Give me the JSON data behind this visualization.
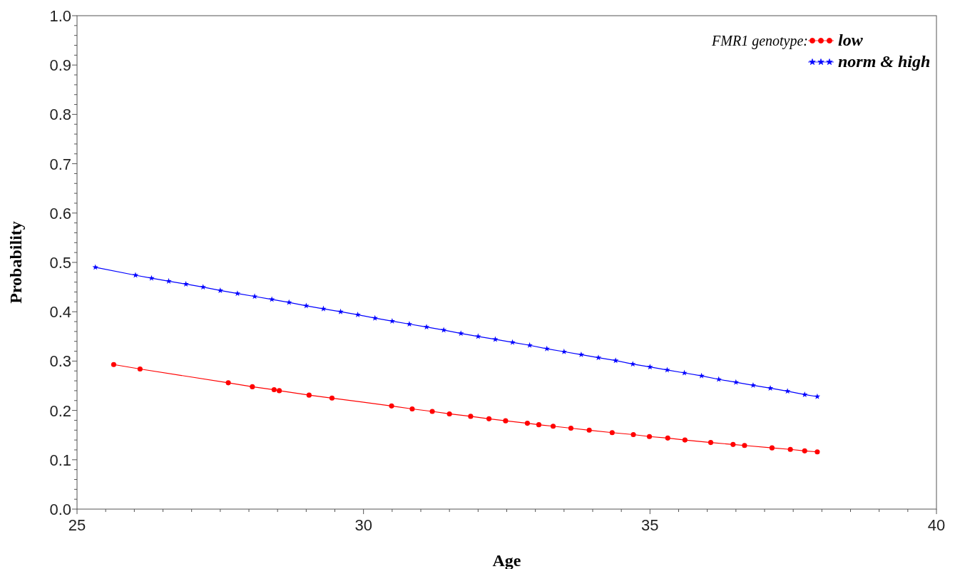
{
  "chart_data": {
    "type": "line",
    "xlabel": "Age",
    "ylabel": "Probability",
    "legend_title": "FMR1 genotype:",
    "legend": "top right",
    "grid": false,
    "xlim": [
      25,
      40
    ],
    "ylim": [
      0,
      1
    ],
    "xticks": [
      25,
      {
        "value": 25.5,
        "label": null
      },
      {
        "value": 26,
        "label": null
      },
      {
        "value": 26.5,
        "label": null
      },
      {
        "value": 27,
        "label": null
      },
      {
        "value": 27.5,
        "label": null
      },
      {
        "value": 28,
        "label": null
      },
      {
        "value": 28.5,
        "label": null
      },
      {
        "value": 29,
        "label": null
      },
      {
        "value": 29.5,
        "label": null
      },
      30,
      {
        "value": 30.5,
        "label": null
      },
      {
        "value": 31,
        "label": null
      },
      {
        "value": 31.5,
        "label": null
      },
      {
        "value": 32,
        "label": null
      },
      {
        "value": 32.5,
        "label": null
      },
      {
        "value": 33,
        "label": null
      },
      {
        "value": 33.5,
        "label": null
      },
      {
        "value": 34,
        "label": null
      },
      {
        "value": 34.5,
        "label": null
      },
      35,
      {
        "value": 35.5,
        "label": null
      },
      {
        "value": 36,
        "label": null
      },
      {
        "value": 36.5,
        "label": null
      },
      {
        "value": 37,
        "label": null
      },
      {
        "value": 37.5,
        "label": null
      },
      {
        "value": 38,
        "label": null
      },
      {
        "value": 38.5,
        "label": null
      },
      {
        "value": 39,
        "label": null
      },
      {
        "value": 39.5,
        "label": null
      },
      40
    ],
    "yticks": [
      {
        "value": 0,
        "label": "0.0"
      },
      {
        "value": 0.02,
        "label": null
      },
      {
        "value": 0.04,
        "label": null
      },
      {
        "value": 0.06,
        "label": null
      },
      {
        "value": 0.08,
        "label": null
      },
      0.1,
      {
        "value": 0.12,
        "label": null
      },
      {
        "value": 0.14,
        "label": null
      },
      {
        "value": 0.16,
        "label": null
      },
      {
        "value": 0.18,
        "label": null
      },
      0.2,
      {
        "value": 0.22,
        "label": null
      },
      {
        "value": 0.24,
        "label": null
      },
      {
        "value": 0.26,
        "label": null
      },
      {
        "value": 0.28,
        "label": null
      },
      0.3,
      {
        "value": 0.32,
        "label": null
      },
      {
        "value": 0.34,
        "label": null
      },
      {
        "value": 0.36,
        "label": null
      },
      {
        "value": 0.38,
        "label": null
      },
      0.4,
      {
        "value": 0.42,
        "label": null
      },
      {
        "value": 0.44,
        "label": null
      },
      {
        "value": 0.46,
        "label": null
      },
      {
        "value": 0.48,
        "label": null
      },
      0.5,
      {
        "value": 0.52,
        "label": null
      },
      {
        "value": 0.54,
        "label": null
      },
      {
        "value": 0.56,
        "label": null
      },
      {
        "value": 0.58,
        "label": null
      },
      0.6,
      {
        "value": 0.62,
        "label": null
      },
      {
        "value": 0.64,
        "label": null
      },
      {
        "value": 0.66,
        "label": null
      },
      {
        "value": 0.68,
        "label": null
      },
      0.7,
      {
        "value": 0.72,
        "label": null
      },
      {
        "value": 0.74,
        "label": null
      },
      {
        "value": 0.76,
        "label": null
      },
      {
        "value": 0.78,
        "label": null
      },
      0.8,
      {
        "value": 0.82,
        "label": null
      },
      {
        "value": 0.84,
        "label": null
      },
      {
        "value": 0.86,
        "label": null
      },
      {
        "value": 0.88,
        "label": null
      },
      0.9,
      {
        "value": 0.92,
        "label": null
      },
      {
        "value": 0.94,
        "label": null
      },
      {
        "value": 0.96,
        "label": null
      },
      {
        "value": 0.98,
        "label": null
      },
      {
        "value": 1,
        "label": "1.0"
      }
    ],
    "series": [
      {
        "name": "low",
        "color": "#ff0000",
        "marker": "circle",
        "x": [
          25.64,
          26.1,
          27.64,
          28.06,
          28.44,
          28.53,
          29.05,
          29.45,
          30.49,
          30.85,
          31.2,
          31.5,
          31.87,
          32.19,
          32.48,
          32.86,
          33.06,
          33.31,
          33.62,
          33.94,
          34.34,
          34.71,
          34.99,
          35.31,
          35.61,
          36.06,
          36.45,
          36.65,
          37.13,
          37.45,
          37.7,
          37.92
        ],
        "values": [
          0.293,
          0.284,
          0.256,
          0.248,
          0.242,
          0.24,
          0.231,
          0.225,
          0.209,
          0.203,
          0.198,
          0.193,
          0.188,
          0.183,
          0.179,
          0.174,
          0.171,
          0.168,
          0.164,
          0.16,
          0.155,
          0.151,
          0.147,
          0.144,
          0.14,
          0.135,
          0.131,
          0.129,
          0.124,
          0.121,
          0.118,
          0.116
        ]
      },
      {
        "name": "norm & high",
        "color": "#0000ff",
        "marker": "star",
        "x": [
          25.32,
          26.02,
          26.3,
          26.6,
          26.9,
          27.2,
          27.5,
          27.8,
          28.1,
          28.4,
          28.7,
          29.0,
          29.3,
          29.6,
          29.9,
          30.2,
          30.5,
          30.8,
          31.1,
          31.4,
          31.7,
          32.0,
          32.3,
          32.6,
          32.9,
          33.2,
          33.5,
          33.8,
          34.1,
          34.4,
          34.7,
          35.0,
          35.3,
          35.6,
          35.9,
          36.2,
          36.5,
          36.8,
          37.1,
          37.4,
          37.7,
          37.92
        ],
        "values": [
          0.49,
          0.474,
          0.468,
          0.462,
          0.456,
          0.45,
          0.443,
          0.437,
          0.431,
          0.425,
          0.419,
          0.412,
          0.406,
          0.4,
          0.394,
          0.387,
          0.381,
          0.375,
          0.369,
          0.363,
          0.356,
          0.35,
          0.344,
          0.338,
          0.332,
          0.325,
          0.319,
          0.313,
          0.307,
          0.301,
          0.294,
          0.288,
          0.282,
          0.276,
          0.27,
          0.263,
          0.257,
          0.251,
          0.245,
          0.239,
          0.232,
          0.228
        ]
      }
    ]
  }
}
